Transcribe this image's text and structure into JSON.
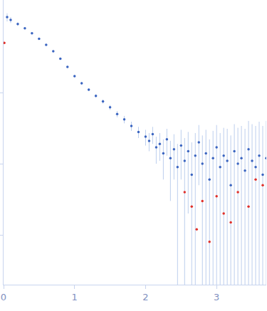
{
  "chart_data": {
    "type": "scatter",
    "log": "y",
    "grid": false,
    "tick_labels": "x",
    "xlim": [
      0,
      3.7
    ],
    "xticks": [
      0,
      1,
      2,
      3
    ],
    "ylim": [
      0.0002,
      2
    ],
    "yticks": [
      0.001,
      0.01,
      0.1
    ],
    "series": [
      {
        "color": "#3a64c0",
        "marker": "circle",
        "x": [
          0.05,
          0.1,
          0.2,
          0.3,
          0.4,
          0.5,
          0.6,
          0.7,
          0.8,
          0.9,
          1.0,
          1.1,
          1.2,
          1.3,
          1.4,
          1.5,
          1.6,
          1.7,
          1.8,
          1.9,
          2.0,
          2.05,
          2.1,
          2.15,
          2.2,
          2.25,
          2.3,
          2.35,
          2.4,
          2.45,
          2.5,
          2.55,
          2.6,
          2.65,
          2.7,
          2.75,
          2.8,
          2.85,
          2.9,
          2.95,
          3.0,
          3.05,
          3.1,
          3.15,
          3.2,
          3.25,
          3.3,
          3.35,
          3.4,
          3.45,
          3.5,
          3.55,
          3.6,
          3.65,
          3.7
        ],
        "values": [
          1.15,
          1.05,
          0.92,
          0.8,
          0.68,
          0.57,
          0.47,
          0.38,
          0.3,
          0.23,
          0.17,
          0.135,
          0.11,
          0.09,
          0.075,
          0.062,
          0.05,
          0.042,
          0.034,
          0.028,
          0.024,
          0.021,
          0.026,
          0.017,
          0.019,
          0.014,
          0.022,
          0.012,
          0.016,
          0.009,
          0.018,
          0.011,
          0.015,
          0.007,
          0.013,
          0.02,
          0.01,
          0.014,
          0.006,
          0.012,
          0.017,
          0.009,
          0.013,
          0.011,
          0.005,
          0.015,
          0.01,
          0.012,
          0.008,
          0.016,
          0.011,
          0.009,
          0.013,
          0.007,
          0.012
        ],
        "error": [
          0.15,
          0.1,
          0.05,
          0.02,
          0.02,
          0.015,
          0.012,
          0.01,
          0.008,
          0.007,
          0.006,
          0.006,
          0.005,
          0.005,
          0.005,
          0.005,
          0.005,
          0.005,
          0.005,
          0.005,
          0.006,
          0.006,
          0.007,
          0.007,
          0.008,
          0.008,
          0.009,
          0.009,
          0.01,
          0.01,
          0.012,
          0.012,
          0.013,
          0.013,
          0.014,
          0.015,
          0.015,
          0.016,
          0.016,
          0.017,
          0.018,
          0.018,
          0.019,
          0.02,
          0.02,
          0.021,
          0.022,
          0.022,
          0.023,
          0.024,
          0.025,
          0.025,
          0.026,
          0.027,
          0.028
        ]
      },
      {
        "color": "#e0302a",
        "marker": "circle",
        "x": [
          0.01,
          2.55,
          2.65,
          2.72,
          2.8,
          2.9,
          3.0,
          3.1,
          3.2,
          3.3,
          3.45,
          3.55,
          3.65
        ],
        "values": [
          0.5,
          0.004,
          0.0025,
          0.0012,
          0.003,
          0.0008,
          0.0035,
          0.002,
          0.0015,
          0.004,
          0.0025,
          0.006,
          0.005
        ]
      }
    ]
  }
}
